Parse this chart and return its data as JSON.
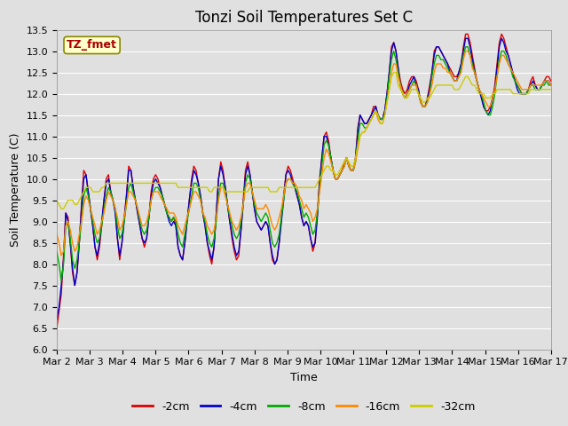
{
  "title": "Tonzi Soil Temperatures Set C",
  "xlabel": "Time",
  "ylabel": "Soil Temperature (C)",
  "ylim": [
    6.0,
    13.5
  ],
  "yticks": [
    6.0,
    6.5,
    7.0,
    7.5,
    8.0,
    8.5,
    9.0,
    9.5,
    10.0,
    10.5,
    11.0,
    11.5,
    12.0,
    12.5,
    13.0,
    13.5
  ],
  "xtick_labels": [
    "Mar 2",
    "Mar 3",
    "Mar 4",
    "Mar 5",
    "Mar 6",
    "Mar 7",
    "Mar 8",
    "Mar 9",
    "Mar 10",
    "Mar 11",
    "Mar 12",
    "Mar 13",
    "Mar 14",
    "Mar 15",
    "Mar 16",
    "Mar 17"
  ],
  "series_colors": [
    "#dd0000",
    "#0000cc",
    "#00aa00",
    "#ff8800",
    "#cccc00"
  ],
  "series_labels": [
    "-2cm",
    "-4cm",
    "-8cm",
    "-16cm",
    "-32cm"
  ],
  "background_color": "#e0e0e0",
  "plot_bg_color": "#e0e0e0",
  "grid_color": "#ffffff",
  "legend_label": "TZ_fmet",
  "legend_text_color": "#aa0000",
  "legend_bg_color": "#ffffcc",
  "legend_border_color": "#888800",
  "title_fontsize": 12,
  "axis_fontsize": 9,
  "tick_fontsize": 8,
  "series": {
    "neg2cm": [
      6.5,
      6.9,
      7.3,
      8.2,
      9.2,
      9.1,
      8.5,
      7.8,
      7.5,
      7.8,
      8.5,
      9.4,
      10.2,
      10.1,
      9.7,
      9.3,
      8.9,
      8.4,
      8.1,
      8.4,
      8.9,
      9.5,
      10.0,
      10.1,
      9.7,
      9.5,
      9.3,
      8.6,
      8.1,
      8.5,
      9.1,
      9.6,
      10.3,
      10.2,
      9.8,
      9.5,
      9.2,
      8.9,
      8.6,
      8.4,
      8.6,
      9.1,
      9.7,
      10.0,
      10.1,
      10.0,
      9.8,
      9.6,
      9.4,
      9.2,
      9.1,
      9.0,
      9.1,
      8.9,
      8.4,
      8.2,
      8.1,
      8.5,
      9.0,
      9.5,
      10.0,
      10.3,
      10.2,
      9.9,
      9.6,
      9.2,
      8.9,
      8.5,
      8.2,
      8.0,
      8.4,
      9.2,
      10.0,
      10.4,
      10.2,
      9.8,
      9.4,
      9.0,
      8.6,
      8.3,
      8.1,
      8.2,
      8.8,
      9.5,
      10.2,
      10.4,
      10.1,
      9.7,
      9.3,
      9.0,
      8.9,
      8.8,
      8.9,
      9.0,
      8.9,
      8.5,
      8.1,
      8.0,
      8.1,
      8.5,
      9.1,
      9.6,
      10.1,
      10.3,
      10.2,
      10.0,
      9.8,
      9.6,
      9.4,
      9.1,
      8.9,
      9.0,
      8.9,
      8.6,
      8.3,
      8.5,
      9.2,
      10.0,
      10.5,
      11.0,
      11.1,
      10.9,
      10.5,
      10.2,
      10.0,
      10.0,
      10.1,
      10.2,
      10.4,
      10.5,
      10.3,
      10.2,
      10.2,
      10.5,
      11.2,
      11.5,
      11.4,
      11.3,
      11.3,
      11.4,
      11.5,
      11.7,
      11.7,
      11.5,
      11.4,
      11.4,
      11.6,
      12.0,
      12.5,
      13.1,
      13.2,
      13.0,
      12.6,
      12.3,
      12.1,
      12.0,
      12.1,
      12.3,
      12.4,
      12.4,
      12.3,
      12.1,
      11.8,
      11.7,
      11.7,
      11.9,
      12.2,
      12.5,
      13.0,
      13.1,
      13.1,
      13.0,
      12.9,
      12.8,
      12.7,
      12.6,
      12.5,
      12.4,
      12.4,
      12.5,
      12.7,
      13.1,
      13.4,
      13.4,
      13.2,
      12.9,
      12.6,
      12.3,
      12.1,
      12.0,
      11.7,
      11.6,
      11.6,
      11.7,
      11.9,
      12.2,
      12.7,
      13.2,
      13.4,
      13.3,
      13.1,
      12.9,
      12.7,
      12.5,
      12.3,
      12.2,
      12.1,
      12.0,
      12.0,
      12.0,
      12.1,
      12.3,
      12.4,
      12.2,
      12.1,
      12.1,
      12.2,
      12.3,
      12.4,
      12.4,
      12.3
    ],
    "neg4cm": [
      6.7,
      7.0,
      7.5,
      8.1,
      9.2,
      9.0,
      8.5,
      7.9,
      7.5,
      7.8,
      8.5,
      9.3,
      10.0,
      10.1,
      9.7,
      9.3,
      8.9,
      8.4,
      8.2,
      8.5,
      9.0,
      9.5,
      9.9,
      10.0,
      9.7,
      9.5,
      9.2,
      8.6,
      8.2,
      8.5,
      9.0,
      9.6,
      10.2,
      10.2,
      9.8,
      9.5,
      9.2,
      8.9,
      8.6,
      8.5,
      8.6,
      9.1,
      9.6,
      9.9,
      10.0,
      9.9,
      9.8,
      9.6,
      9.4,
      9.2,
      9.0,
      8.9,
      9.0,
      8.9,
      8.4,
      8.2,
      8.1,
      8.5,
      9.0,
      9.5,
      9.9,
      10.2,
      10.1,
      9.9,
      9.6,
      9.2,
      8.9,
      8.5,
      8.3,
      8.1,
      8.4,
      9.2,
      10.0,
      10.3,
      10.1,
      9.8,
      9.4,
      9.0,
      8.7,
      8.4,
      8.2,
      8.3,
      8.8,
      9.4,
      10.1,
      10.3,
      10.1,
      9.7,
      9.3,
      9.0,
      8.9,
      8.8,
      8.9,
      9.0,
      8.9,
      8.5,
      8.2,
      8.0,
      8.1,
      8.5,
      9.0,
      9.5,
      10.1,
      10.2,
      10.1,
      9.9,
      9.8,
      9.6,
      9.4,
      9.1,
      8.9,
      9.0,
      8.9,
      8.6,
      8.4,
      8.5,
      9.1,
      9.9,
      10.5,
      11.0,
      11.0,
      10.8,
      10.5,
      10.2,
      10.0,
      10.0,
      10.1,
      10.2,
      10.3,
      10.5,
      10.3,
      10.2,
      10.2,
      10.5,
      11.1,
      11.5,
      11.4,
      11.3,
      11.3,
      11.4,
      11.5,
      11.6,
      11.7,
      11.5,
      11.4,
      11.4,
      11.6,
      12.0,
      12.5,
      13.0,
      13.2,
      13.0,
      12.6,
      12.2,
      12.0,
      11.9,
      12.0,
      12.2,
      12.3,
      12.4,
      12.2,
      12.1,
      11.8,
      11.7,
      11.7,
      11.9,
      12.1,
      12.5,
      12.9,
      13.1,
      13.1,
      13.0,
      12.9,
      12.8,
      12.7,
      12.5,
      12.4,
      12.3,
      12.3,
      12.5,
      12.7,
      13.0,
      13.3,
      13.3,
      13.1,
      12.8,
      12.5,
      12.3,
      12.1,
      11.9,
      11.7,
      11.6,
      11.5,
      11.6,
      11.9,
      12.1,
      12.6,
      13.1,
      13.3,
      13.2,
      13.0,
      12.9,
      12.7,
      12.5,
      12.3,
      12.1,
      12.0,
      12.0,
      12.0,
      12.0,
      12.1,
      12.2,
      12.3,
      12.2,
      12.1,
      12.1,
      12.2,
      12.3,
      12.3,
      12.3,
      12.2
    ],
    "neg8cm": [
      8.3,
      8.0,
      7.6,
      8.0,
      8.9,
      9.0,
      8.6,
      8.1,
      7.9,
      8.1,
      8.5,
      9.0,
      9.6,
      9.8,
      9.6,
      9.3,
      9.0,
      8.7,
      8.5,
      8.6,
      8.9,
      9.3,
      9.6,
      9.8,
      9.7,
      9.5,
      9.3,
      8.9,
      8.6,
      8.7,
      9.0,
      9.4,
      9.8,
      9.9,
      9.7,
      9.5,
      9.3,
      9.0,
      8.8,
      8.7,
      8.8,
      9.1,
      9.5,
      9.7,
      9.8,
      9.8,
      9.7,
      9.6,
      9.4,
      9.2,
      9.1,
      9.0,
      9.1,
      9.0,
      8.7,
      8.5,
      8.4,
      8.7,
      9.0,
      9.3,
      9.6,
      9.9,
      9.9,
      9.8,
      9.5,
      9.2,
      9.0,
      8.7,
      8.5,
      8.4,
      8.6,
      9.0,
      9.6,
      9.9,
      9.9,
      9.7,
      9.4,
      9.1,
      8.9,
      8.7,
      8.6,
      8.7,
      9.0,
      9.4,
      9.9,
      10.1,
      10.0,
      9.7,
      9.4,
      9.2,
      9.1,
      9.0,
      9.1,
      9.2,
      9.1,
      8.8,
      8.5,
      8.4,
      8.5,
      8.7,
      9.1,
      9.5,
      9.9,
      10.0,
      10.0,
      9.9,
      9.8,
      9.7,
      9.5,
      9.3,
      9.1,
      9.2,
      9.1,
      8.9,
      8.7,
      8.8,
      9.2,
      9.8,
      10.3,
      10.8,
      10.9,
      10.8,
      10.5,
      10.2,
      10.0,
      10.0,
      10.1,
      10.2,
      10.3,
      10.5,
      10.3,
      10.2,
      10.2,
      10.4,
      10.9,
      11.3,
      11.3,
      11.2,
      11.2,
      11.3,
      11.4,
      11.5,
      11.6,
      11.5,
      11.4,
      11.4,
      11.5,
      11.9,
      12.4,
      12.8,
      13.0,
      12.8,
      12.5,
      12.2,
      12.0,
      11.9,
      12.0,
      12.1,
      12.2,
      12.3,
      12.2,
      12.0,
      11.8,
      11.7,
      11.7,
      11.8,
      12.0,
      12.4,
      12.7,
      12.9,
      12.9,
      12.8,
      12.8,
      12.7,
      12.6,
      12.5,
      12.4,
      12.3,
      12.3,
      12.4,
      12.6,
      12.9,
      13.1,
      13.1,
      12.9,
      12.7,
      12.5,
      12.3,
      12.1,
      12.0,
      11.8,
      11.6,
      11.5,
      11.5,
      11.7,
      12.0,
      12.4,
      12.8,
      13.0,
      13.0,
      12.9,
      12.7,
      12.6,
      12.4,
      12.3,
      12.2,
      12.1,
      12.0,
      12.0,
      12.0,
      12.1,
      12.2,
      12.2,
      12.1,
      12.1,
      12.1,
      12.2,
      12.2,
      12.3,
      12.2,
      12.2
    ],
    "neg16cm": [
      8.7,
      8.5,
      8.2,
      8.3,
      8.9,
      9.0,
      8.8,
      8.5,
      8.3,
      8.4,
      8.7,
      9.0,
      9.4,
      9.6,
      9.5,
      9.3,
      9.1,
      8.9,
      8.7,
      8.8,
      9.0,
      9.2,
      9.5,
      9.7,
      9.6,
      9.5,
      9.3,
      9.1,
      8.8,
      8.9,
      9.1,
      9.4,
      9.7,
      9.7,
      9.6,
      9.5,
      9.3,
      9.1,
      8.9,
      8.9,
      9.0,
      9.2,
      9.5,
      9.7,
      9.7,
      9.7,
      9.6,
      9.5,
      9.4,
      9.3,
      9.2,
      9.2,
      9.2,
      9.1,
      8.9,
      8.8,
      8.7,
      8.9,
      9.1,
      9.3,
      9.5,
      9.7,
      9.7,
      9.6,
      9.5,
      9.2,
      9.1,
      8.9,
      8.8,
      8.7,
      8.8,
      9.1,
      9.5,
      9.8,
      9.8,
      9.6,
      9.4,
      9.2,
      9.0,
      8.9,
      8.8,
      8.9,
      9.1,
      9.4,
      9.8,
      9.9,
      9.9,
      9.7,
      9.5,
      9.3,
      9.3,
      9.3,
      9.3,
      9.4,
      9.3,
      9.1,
      8.9,
      8.8,
      8.9,
      9.1,
      9.3,
      9.6,
      9.9,
      10.0,
      10.0,
      9.9,
      9.9,
      9.8,
      9.6,
      9.5,
      9.3,
      9.4,
      9.3,
      9.2,
      9.0,
      9.1,
      9.3,
      9.7,
      10.1,
      10.5,
      10.7,
      10.6,
      10.4,
      10.2,
      10.0,
      10.0,
      10.1,
      10.2,
      10.3,
      10.5,
      10.3,
      10.2,
      10.2,
      10.4,
      10.7,
      11.0,
      11.1,
      11.1,
      11.2,
      11.3,
      11.4,
      11.5,
      11.6,
      11.4,
      11.3,
      11.3,
      11.5,
      11.8,
      12.1,
      12.5,
      12.7,
      12.7,
      12.4,
      12.2,
      12.0,
      11.9,
      12.0,
      12.1,
      12.2,
      12.2,
      12.2,
      12.0,
      11.8,
      11.7,
      11.7,
      11.8,
      12.0,
      12.2,
      12.5,
      12.7,
      12.7,
      12.7,
      12.6,
      12.6,
      12.5,
      12.5,
      12.4,
      12.3,
      12.3,
      12.4,
      12.5,
      12.8,
      13.0,
      13.0,
      12.9,
      12.6,
      12.5,
      12.3,
      12.1,
      12.0,
      11.9,
      11.8,
      11.7,
      11.7,
      11.9,
      12.1,
      12.4,
      12.7,
      12.9,
      12.9,
      12.8,
      12.7,
      12.6,
      12.5,
      12.4,
      12.3,
      12.2,
      12.1,
      12.1,
      12.1,
      12.1,
      12.2,
      12.2,
      12.2,
      12.2,
      12.2,
      12.2,
      12.3,
      12.3,
      12.3,
      12.2
    ],
    "neg32cm": [
      9.5,
      9.4,
      9.3,
      9.3,
      9.4,
      9.5,
      9.5,
      9.5,
      9.4,
      9.4,
      9.5,
      9.6,
      9.7,
      9.8,
      9.8,
      9.8,
      9.7,
      9.7,
      9.7,
      9.7,
      9.8,
      9.8,
      9.9,
      9.9,
      9.9,
      9.9,
      9.9,
      9.9,
      9.9,
      9.9,
      9.9,
      9.9,
      9.9,
      9.9,
      9.9,
      9.9,
      9.9,
      9.9,
      9.9,
      9.9,
      9.9,
      9.9,
      9.9,
      9.9,
      9.9,
      9.9,
      9.9,
      9.9,
      9.9,
      9.9,
      9.9,
      9.9,
      9.9,
      9.9,
      9.8,
      9.8,
      9.8,
      9.8,
      9.8,
      9.8,
      9.8,
      9.8,
      9.8,
      9.8,
      9.8,
      9.8,
      9.8,
      9.8,
      9.7,
      9.7,
      9.8,
      9.8,
      9.8,
      9.8,
      9.8,
      9.7,
      9.7,
      9.7,
      9.7,
      9.7,
      9.7,
      9.7,
      9.7,
      9.7,
      9.7,
      9.7,
      9.8,
      9.8,
      9.8,
      9.8,
      9.8,
      9.8,
      9.8,
      9.8,
      9.8,
      9.7,
      9.7,
      9.7,
      9.7,
      9.8,
      9.8,
      9.8,
      9.8,
      9.8,
      9.8,
      9.8,
      9.8,
      9.8,
      9.8,
      9.8,
      9.8,
      9.8,
      9.8,
      9.8,
      9.8,
      9.8,
      9.9,
      10.0,
      10.1,
      10.2,
      10.3,
      10.3,
      10.2,
      10.2,
      10.1,
      10.1,
      10.2,
      10.3,
      10.4,
      10.5,
      10.4,
      10.3,
      10.3,
      10.5,
      10.8,
      11.0,
      11.1,
      11.1,
      11.2,
      11.3,
      11.4,
      11.5,
      11.6,
      11.5,
      11.3,
      11.3,
      11.5,
      11.8,
      12.1,
      12.4,
      12.5,
      12.5,
      12.2,
      12.1,
      12.0,
      11.9,
      11.9,
      12.0,
      12.1,
      12.1,
      12.1,
      12.0,
      11.9,
      11.8,
      11.8,
      11.9,
      11.9,
      12.0,
      12.1,
      12.2,
      12.2,
      12.2,
      12.2,
      12.2,
      12.2,
      12.2,
      12.2,
      12.1,
      12.1,
      12.1,
      12.2,
      12.3,
      12.4,
      12.4,
      12.3,
      12.2,
      12.2,
      12.1,
      12.0,
      12.0,
      12.0,
      11.9,
      11.9,
      11.9,
      12.0,
      12.0,
      12.1,
      12.1,
      12.1,
      12.1,
      12.1,
      12.1,
      12.1,
      12.0,
      12.0,
      12.0,
      12.0,
      12.0,
      12.0,
      12.0,
      12.0,
      12.1,
      12.1,
      12.1,
      12.1,
      12.1,
      12.1,
      12.1,
      12.1,
      12.1,
      12.1
    ]
  }
}
